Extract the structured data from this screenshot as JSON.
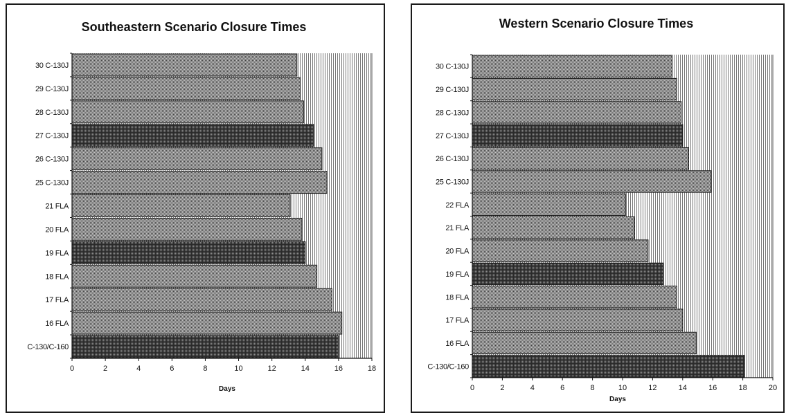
{
  "chart_data": [
    {
      "type": "bar",
      "orientation": "horizontal",
      "title": "Southeastern Scenario Closure Times",
      "xlabel": "Days",
      "ylabel": "",
      "xlim": [
        0,
        18
      ],
      "xticks": [
        0,
        2,
        4,
        6,
        8,
        10,
        12,
        14,
        16,
        18
      ],
      "grid": true,
      "categories": [
        "30 C-130J",
        "29 C-130J",
        "28 C-130J",
        "27 C-130J",
        "26 C-130J",
        "25 C-130J",
        "21 FLA",
        "20 FLA",
        "19 FLA",
        "18 FLA",
        "17 FLA",
        "16 FLA",
        "C-130/C-160"
      ],
      "values": [
        13.5,
        13.7,
        13.9,
        14.5,
        15.0,
        15.3,
        13.1,
        13.8,
        14.0,
        14.7,
        15.6,
        16.2,
        16.0
      ],
      "bar_colors": [
        "#8f8f8f",
        "#8f8f8f",
        "#8f8f8f",
        "#4a4a4a",
        "#8f8f8f",
        "#8f8f8f",
        "#8f8f8f",
        "#8f8f8f",
        "#4a4a4a",
        "#8f8f8f",
        "#8f8f8f",
        "#8f8f8f",
        "#4a4a4a"
      ]
    },
    {
      "type": "bar",
      "orientation": "horizontal",
      "title": "Western Scenario Closure Times",
      "xlabel": "Days",
      "ylabel": "",
      "xlim": [
        0,
        20
      ],
      "xticks": [
        0,
        2,
        4,
        6,
        8,
        10,
        12,
        14,
        16,
        18,
        20
      ],
      "grid": true,
      "categories": [
        "30 C-130J",
        "29 C-130J",
        "28 C-130J",
        "27 C-130J",
        "26 C-130J",
        "25 C-130J",
        "22 FLA",
        "21 FLA",
        "20 FLA",
        "19 FLA",
        "18 FLA",
        "17 FLA",
        "16 FLA",
        "C-130/C-160"
      ],
      "values": [
        13.3,
        13.6,
        13.9,
        14.0,
        14.4,
        15.9,
        10.2,
        10.8,
        11.7,
        12.7,
        13.6,
        14.0,
        14.9,
        18.1
      ],
      "bar_colors": [
        "#8f8f8f",
        "#8f8f8f",
        "#8f8f8f",
        "#4a4a4a",
        "#8f8f8f",
        "#8f8f8f",
        "#8f8f8f",
        "#8f8f8f",
        "#8f8f8f",
        "#4a4a4a",
        "#8f8f8f",
        "#8f8f8f",
        "#8f8f8f",
        "#4a4a4a"
      ]
    }
  ]
}
